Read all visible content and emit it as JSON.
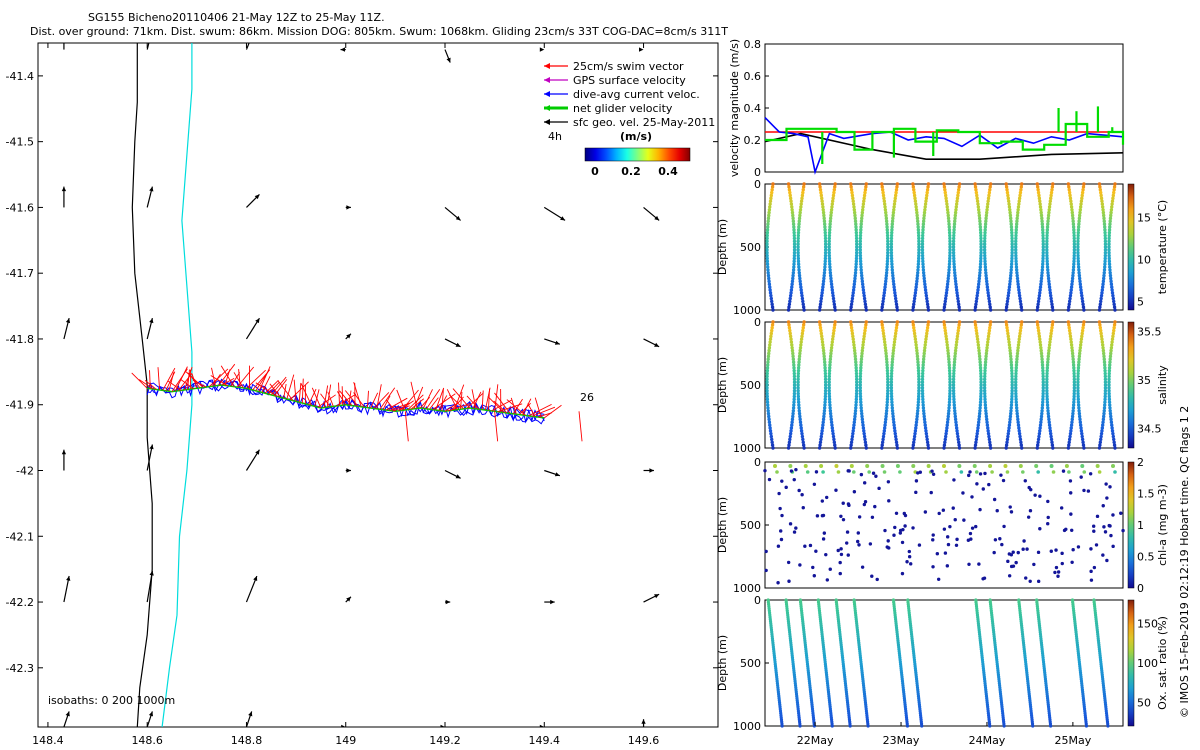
{
  "header": {
    "line1": "SG155 Bicheno20110406 21-May 12Z to 25-May 11Z.",
    "line2": "Dist. over ground: 71km. Dist. swum: 86km. Mission DOG: 805km. Swum: 1068km. Gliding 23cm/s 33T COG-DAC=8cm/s 311T"
  },
  "credit": "© IMOS 15-Feb-2019 02:12:19 Hobart time. QC flags 1 2",
  "chart_data": [
    {
      "type": "scatter",
      "id": "map",
      "x_ticks": [
        "148.4",
        "148.6",
        "148.8",
        "149",
        "149.2",
        "149.4",
        "149.6"
      ],
      "y_ticks": [
        "-41.4",
        "-41.5",
        "-41.6",
        "-41.7",
        "-41.8",
        "-41.9",
        "-42",
        "-42.1",
        "-42.2",
        "-42.3"
      ],
      "xlim": [
        148.38,
        149.75
      ],
      "ylim": [
        -42.39,
        -41.35
      ],
      "legend": [
        {
          "label": "25cm/s swim vector",
          "color": "#ff0000"
        },
        {
          "label": "GPS surface velocity",
          "color": "#c000c0"
        },
        {
          "label": "dive-avg current veloc.",
          "color": "#0000ff"
        },
        {
          "label": "net glider velocity",
          "color": "#00cc00"
        },
        {
          "label": "sfc geo. vel. 25-May-2011",
          "color": "#000000"
        }
      ],
      "legend_position": "top-right",
      "colorbar": {
        "title": "(m/s)",
        "ticks": [
          "0",
          "0.2",
          "0.4"
        ],
        "range": [
          0,
          0.5
        ]
      },
      "labels": [
        "4h",
        "26"
      ],
      "isobaths_label": "isobaths: 0   200  1000m",
      "isobath_0": [
        [
          148.58,
          -42.39
        ],
        [
          148.585,
          -42.33
        ],
        [
          148.6,
          -42.25
        ],
        [
          148.61,
          -42.15
        ],
        [
          148.61,
          -42.05
        ],
        [
          148.6,
          -41.95
        ],
        [
          148.6,
          -41.87
        ],
        [
          148.59,
          -41.8
        ],
        [
          148.575,
          -41.7
        ],
        [
          148.57,
          -41.6
        ],
        [
          148.575,
          -41.5
        ],
        [
          148.58,
          -41.44
        ],
        [
          148.58,
          -41.35
        ]
      ],
      "isobath_200": [
        [
          148.63,
          -42.39
        ],
        [
          148.645,
          -42.3
        ],
        [
          148.66,
          -42.22
        ],
        [
          148.665,
          -42.1
        ],
        [
          148.68,
          -42.0
        ],
        [
          148.69,
          -41.9
        ],
        [
          148.69,
          -41.82
        ],
        [
          148.68,
          -41.72
        ],
        [
          148.67,
          -41.62
        ],
        [
          148.68,
          -41.52
        ],
        [
          148.69,
          -41.42
        ],
        [
          148.69,
          -41.35
        ]
      ],
      "glider_track": [
        [
          148.6,
          -41.875
        ],
        [
          148.65,
          -41.88
        ],
        [
          148.7,
          -41.875
        ],
        [
          148.75,
          -41.87
        ],
        [
          148.8,
          -41.875
        ],
        [
          148.85,
          -41.885
        ],
        [
          148.9,
          -41.895
        ],
        [
          148.95,
          -41.905
        ],
        [
          149.0,
          -41.9
        ],
        [
          149.05,
          -41.905
        ],
        [
          149.1,
          -41.91
        ],
        [
          149.15,
          -41.905
        ],
        [
          149.2,
          -41.91
        ],
        [
          149.25,
          -41.905
        ],
        [
          149.3,
          -41.91
        ],
        [
          149.35,
          -41.915
        ],
        [
          149.4,
          -41.92
        ]
      ],
      "geo_vel_grid": {
        "lon": [
          148.4,
          148.6,
          148.8,
          149.0,
          149.2,
          149.4,
          149.6
        ],
        "lat": [
          -41.36,
          -41.6,
          -41.8,
          -42.0,
          -42.2,
          -42.39
        ],
        "u": [
          [
            0,
            0.02,
            0.02,
            -0.02,
            0.02,
            0,
            0
          ],
          [
            0,
            0.02,
            0.05,
            0.02,
            0.06,
            0.08,
            0.06
          ],
          [
            0.02,
            0.02,
            0.05,
            0.02,
            0.06,
            0.06,
            0.06
          ],
          [
            0,
            0.02,
            0.05,
            0.02,
            0.06,
            0.06,
            0.04
          ],
          [
            0.02,
            0.02,
            0.04,
            0.02,
            0.02,
            0.04,
            0.06
          ],
          [
            0.02,
            0.02,
            0.02,
            0,
            0,
            0,
            0
          ]
        ],
        "v": [
          [
            0.08,
            0.08,
            0.05,
            0,
            -0.05,
            0,
            0
          ],
          [
            0.08,
            0.08,
            0.05,
            0,
            -0.05,
            -0.05,
            -0.05
          ],
          [
            0.08,
            0.08,
            0.08,
            0.02,
            -0.03,
            -0.02,
            -0.03
          ],
          [
            0.08,
            0.1,
            0.08,
            0,
            -0.03,
            -0.02,
            0
          ],
          [
            0.1,
            0.12,
            0.1,
            0.02,
            0,
            0,
            0.03
          ],
          [
            0.06,
            0.06,
            0.06,
            0,
            0,
            0,
            0.03
          ]
        ]
      }
    },
    {
      "type": "line",
      "id": "velocity",
      "ylabel": "velocity magnitude (m/s)",
      "y_ticks": [
        "0",
        "0.2",
        "0.4",
        "0.6",
        "0.8"
      ],
      "ylim": [
        0,
        0.8
      ],
      "xlim": [
        0,
        1
      ],
      "series": [
        {
          "color": "#ff0000",
          "x": [
            0,
            1
          ],
          "y": [
            0.25,
            0.25
          ]
        },
        {
          "color": "#000000",
          "x": [
            0,
            0.1,
            0.3,
            0.45,
            0.6,
            0.8,
            1
          ],
          "y": [
            0.19,
            0.24,
            0.14,
            0.08,
            0.08,
            0.11,
            0.12
          ]
        },
        {
          "color": "#0000ff",
          "x": [
            0,
            0.04,
            0.08,
            0.12,
            0.14,
            0.18,
            0.22,
            0.3,
            0.35,
            0.4,
            0.45,
            0.5,
            0.55,
            0.6,
            0.65,
            0.7,
            0.75,
            0.8,
            0.85,
            0.9,
            0.95,
            1
          ],
          "y": [
            0.34,
            0.25,
            0.24,
            0.22,
            0.0,
            0.24,
            0.21,
            0.24,
            0.25,
            0.2,
            0.22,
            0.21,
            0.16,
            0.23,
            0.15,
            0.21,
            0.18,
            0.22,
            0.2,
            0.24,
            0.23,
            0.22
          ]
        },
        {
          "color": "#00dd00",
          "x": [
            0.0,
            0.06,
            0.12,
            0.2,
            0.25,
            0.3,
            0.36,
            0.42,
            0.48,
            0.54,
            0.6,
            0.66,
            0.72,
            0.78,
            0.84,
            0.9,
            0.96,
            1.0
          ],
          "y": [
            0.2,
            0.27,
            0.27,
            0.25,
            0.14,
            0.25,
            0.27,
            0.19,
            0.26,
            0.25,
            0.18,
            0.19,
            0.14,
            0.17,
            0.3,
            0.22,
            0.25,
            0.17
          ]
        }
      ]
    },
    {
      "type": "scatter",
      "id": "temperature",
      "ylabel": "Depth (m)",
      "clabel": "temperature (°C)",
      "y_ticks": [
        "0",
        "500",
        "1000"
      ],
      "ylim": [
        1000,
        0
      ],
      "cticks": [
        "5",
        "10",
        "15"
      ],
      "crange": [
        4,
        19
      ],
      "profiles": 23,
      "surface_value": 17,
      "deep_value": 5,
      "max_depth": 1000
    },
    {
      "type": "scatter",
      "id": "salinity",
      "ylabel": "Depth (m)",
      "clabel": "salinity",
      "y_ticks": [
        "0",
        "500",
        "1000"
      ],
      "ylim": [
        1000,
        0
      ],
      "cticks": [
        "34.5",
        "35",
        "35.5"
      ],
      "crange": [
        34.3,
        35.6
      ],
      "profiles": 23,
      "surface_value": 35.4,
      "deep_value": 34.4,
      "max_depth": 1000
    },
    {
      "type": "scatter",
      "id": "chla",
      "ylabel": "Depth (m)",
      "clabel": "chl-a (mg m-3)",
      "y_ticks": [
        "0",
        "500",
        "1000"
      ],
      "ylim": [
        1000,
        0
      ],
      "cticks": [
        "0",
        "0.5",
        "1",
        "1.5",
        "2"
      ],
      "crange": [
        0,
        2
      ],
      "profiles": 23,
      "surface_value": 0.8,
      "deep_value": 0,
      "max_depth": 1000
    },
    {
      "type": "scatter",
      "id": "oxygen",
      "ylabel": "Depth (m)",
      "clabel": "Ox. sat. ratio (%)",
      "y_ticks": [
        "0",
        "500",
        "1000"
      ],
      "ylim": [
        1000,
        0
      ],
      "cticks": [
        "50",
        "100",
        "150"
      ],
      "crange": [
        20,
        180
      ],
      "profiles": 14,
      "surface_value": 95,
      "deep_value": 40,
      "max_depth": 1000,
      "x_ticks": [
        "22May",
        "23May",
        "24May",
        "25May"
      ]
    }
  ]
}
